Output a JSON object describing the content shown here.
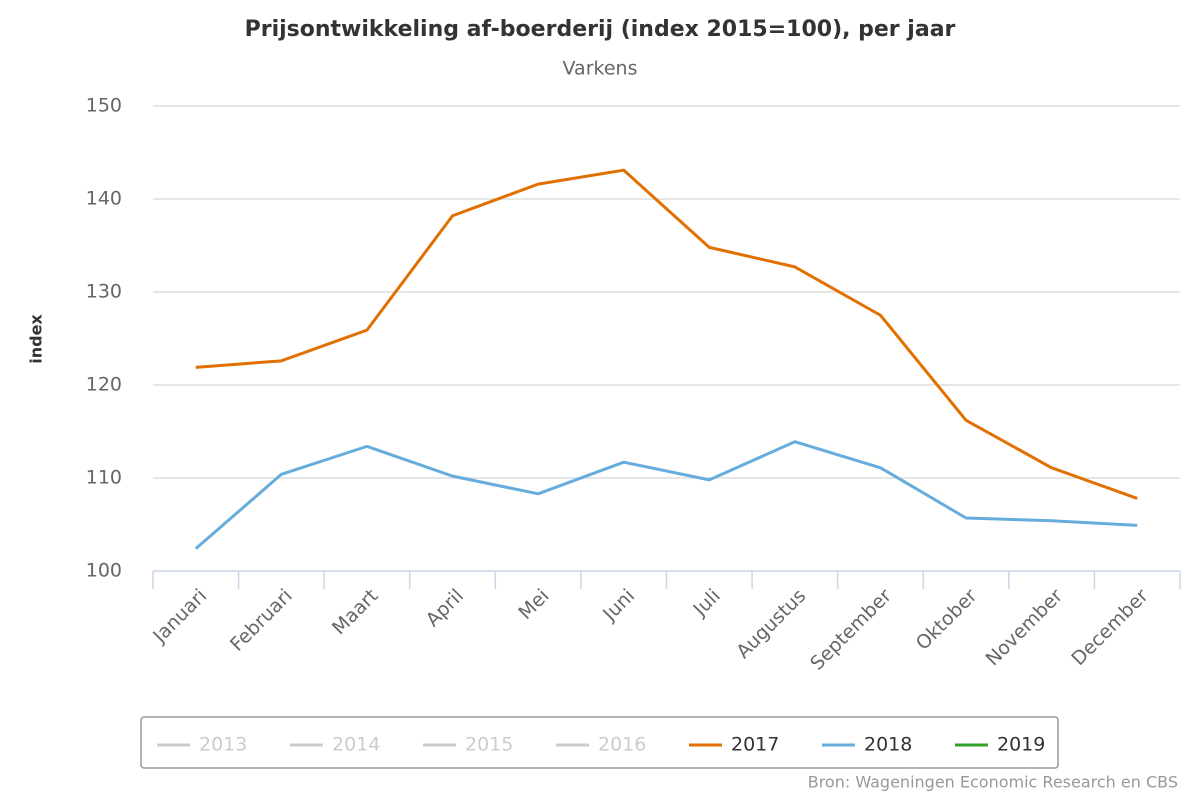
{
  "chart_data": {
    "type": "line",
    "title": "Prijsontwikkeling af-boerderij (index 2015=100), per jaar",
    "subtitle": "Varkens",
    "y_label": "index",
    "source": "Bron: Wageningen Economic Research en CBS",
    "categories": [
      "Januari",
      "Februari",
      "Maart",
      "April",
      "Mei",
      "Juni",
      "Juli",
      "Augustus",
      "September",
      "Oktober",
      "November",
      "December"
    ],
    "ylim": [
      100,
      150
    ],
    "yticks": [
      100,
      110,
      120,
      130,
      140,
      150
    ],
    "grid": true,
    "legend": "bottom",
    "series": [
      {
        "name": "2013",
        "color": "#cccccc",
        "visible": false,
        "values": [
          null,
          null,
          null,
          null,
          null,
          null,
          null,
          null,
          null,
          null,
          null,
          null
        ]
      },
      {
        "name": "2014",
        "color": "#cccccc",
        "visible": false,
        "values": [
          null,
          null,
          null,
          null,
          null,
          null,
          null,
          null,
          null,
          null,
          null,
          null
        ]
      },
      {
        "name": "2015",
        "color": "#cccccc",
        "visible": false,
        "values": [
          null,
          null,
          null,
          null,
          null,
          null,
          null,
          null,
          null,
          null,
          null,
          null
        ]
      },
      {
        "name": "2016",
        "color": "#cccccc",
        "visible": false,
        "values": [
          null,
          null,
          null,
          null,
          null,
          null,
          null,
          null,
          null,
          null,
          null,
          null
        ]
      },
      {
        "name": "2017",
        "color": "#e17000",
        "visible": true,
        "values": [
          121.9,
          122.6,
          125.9,
          138.2,
          141.6,
          143.1,
          134.8,
          132.7,
          127.5,
          116.2,
          111.1,
          107.8
        ]
      },
      {
        "name": "2018",
        "color": "#66acdc",
        "visible": true,
        "values": [
          102.4,
          110.4,
          113.4,
          110.2,
          108.3,
          111.7,
          109.8,
          113.9,
          111.1,
          105.7,
          105.4,
          104.9
        ]
      },
      {
        "name": "2019",
        "color": "#35a02a",
        "visible": true,
        "values": [
          null,
          null,
          null,
          null,
          null,
          null,
          null,
          null,
          null,
          null,
          null,
          null
        ]
      }
    ]
  }
}
